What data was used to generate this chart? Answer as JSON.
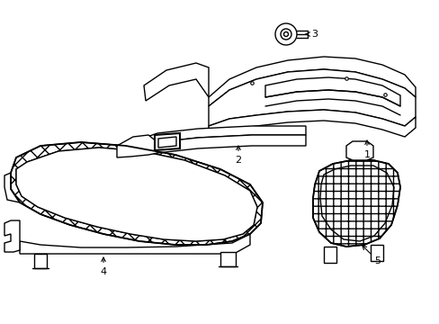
{
  "background_color": "#ffffff",
  "line_color": "#000000",
  "line_width": 1.0,
  "fig_width": 4.89,
  "fig_height": 3.6,
  "dpi": 100
}
